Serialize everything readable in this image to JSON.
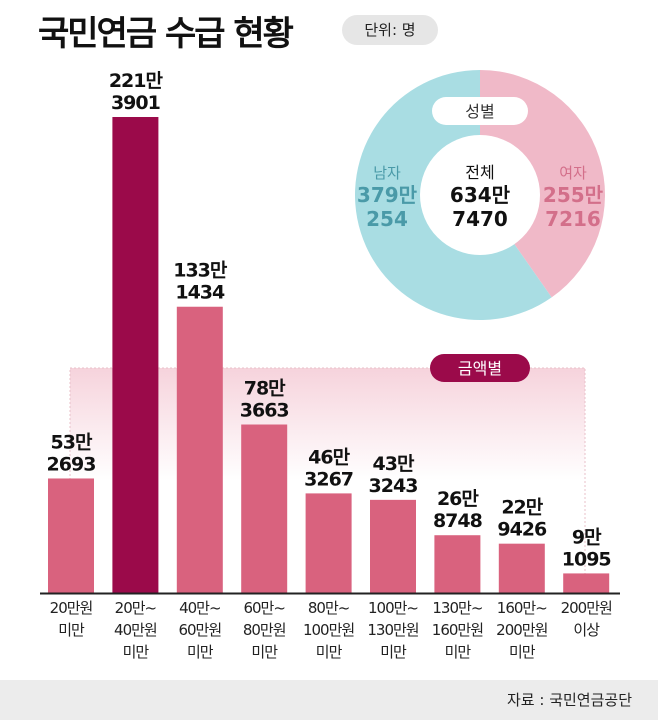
{
  "title": "국민연금 수급 현황",
  "unit": "단위: 명",
  "source": "자료 : 국민연금공단",
  "colors": {
    "bar": "#d9627e",
    "highlight": "#9b0a4a",
    "male": "#a9dde3",
    "female": "#f0b9c8",
    "male_text": "#4a9aa8",
    "female_text": "#d36f8a"
  },
  "chart_data": [
    {
      "type": "bar",
      "title": "금액별",
      "categories": [
        [
          "20만원",
          "미만"
        ],
        [
          "20만~",
          "40만원",
          "미만"
        ],
        [
          "40만~",
          "60만원",
          "미만"
        ],
        [
          "60만~",
          "80만원",
          "미만"
        ],
        [
          "80만~",
          "100만원",
          "미만"
        ],
        [
          "100만~",
          "130만원",
          "미만"
        ],
        [
          "130만~",
          "160만원",
          "미만"
        ],
        [
          "160만~",
          "200만원",
          "미만"
        ],
        [
          "200만원",
          "이상"
        ]
      ],
      "values": [
        532693,
        2213901,
        1331434,
        783663,
        463267,
        433243,
        268748,
        229426,
        91095
      ],
      "labels": [
        [
          "53만",
          "2693"
        ],
        [
          "221만",
          "3901"
        ],
        [
          "133만",
          "1434"
        ],
        [
          "78만",
          "3663"
        ],
        [
          "46만",
          "3267"
        ],
        [
          "43만",
          "3243"
        ],
        [
          "26만",
          "8748"
        ],
        [
          "22만",
          "9426"
        ],
        [
          "9만",
          "1095"
        ]
      ],
      "highlight_index": 1
    },
    {
      "type": "pie",
      "title": "성별",
      "center_label": [
        "전체",
        "634만",
        "7470"
      ],
      "slices": [
        {
          "name": "여자",
          "value": 2557216,
          "label": [
            "255만",
            "7216"
          ]
        },
        {
          "name": "남자",
          "value": 3790254,
          "label": [
            "379만",
            "254"
          ]
        }
      ]
    }
  ]
}
